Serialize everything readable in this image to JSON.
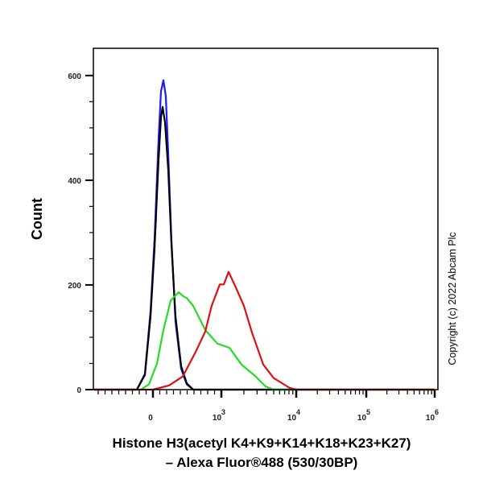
{
  "chart_data": {
    "type": "line",
    "title": "",
    "xlabel_lines": [
      "Histone H3(acetyl K4+K9+K14+K18+K23+K27)",
      "– Alexa Fluor®488 (530/30BP)"
    ],
    "ylabel": "Count",
    "x_scale": "biexponential",
    "xlim": [
      -870,
      1000000
    ],
    "ylim": [
      0,
      652
    ],
    "x_ticks": [
      {
        "value": 0,
        "label": "0"
      },
      {
        "value": 1000,
        "label": "10",
        "exp": "3"
      },
      {
        "value": 10000,
        "label": "10",
        "exp": "4"
      },
      {
        "value": 100000,
        "label": "10",
        "exp": "5"
      },
      {
        "value": 1000000,
        "label": "10",
        "exp": "6"
      }
    ],
    "y_ticks": [
      0,
      200,
      400,
      600
    ],
    "y_tick_labels": [
      "0",
      "200",
      "400",
      "600"
    ],
    "grid": false,
    "series": [
      {
        "color": "#1a1aff",
        "x": [
          -870,
          -235,
          -118,
          -35,
          24,
          82,
          118,
          153,
          188,
          224,
          270,
          329,
          412,
          494,
          588,
          1000000
        ],
        "y": [
          0,
          0,
          30,
          150,
          288,
          480,
          570,
          591,
          560,
          450,
          288,
          130,
          40,
          10,
          0,
          0
        ]
      },
      {
        "color": "#000000",
        "x": [
          -870,
          -235,
          -118,
          -35,
          24,
          82,
          118,
          141,
          176,
          224,
          270,
          329,
          412,
          494,
          588,
          1000000
        ],
        "y": [
          0,
          0,
          28,
          140,
          270,
          440,
          520,
          540,
          510,
          420,
          280,
          140,
          45,
          12,
          0,
          0
        ]
      },
      {
        "color": "#22dd22",
        "x": [
          -870,
          -176,
          -59,
          59,
          153,
          259,
          376,
          447,
          494,
          588,
          765,
          941,
          1280,
          1858,
          2830,
          3900,
          5000,
          1000000
        ],
        "y": [
          0,
          0,
          10,
          50,
          114,
          170,
          186,
          178,
          175,
          160,
          114,
          88,
          80,
          48,
          26,
          6,
          0,
          0
        ]
      },
      {
        "color": "#dd1111",
        "x": [
          -870,
          0,
          235,
          435,
          623,
          765,
          858,
          976,
          1077,
          1250,
          1560,
          2000,
          2560,
          3620,
          5000,
          8200,
          10000,
          1000000
        ],
        "y": [
          0,
          0,
          8,
          25,
          72,
          111,
          160,
          201,
          201,
          225,
          195,
          160,
          109,
          48,
          22,
          3,
          0,
          0
        ]
      }
    ]
  },
  "copyright": "Copyright (c) 2022 Abcam Plc"
}
